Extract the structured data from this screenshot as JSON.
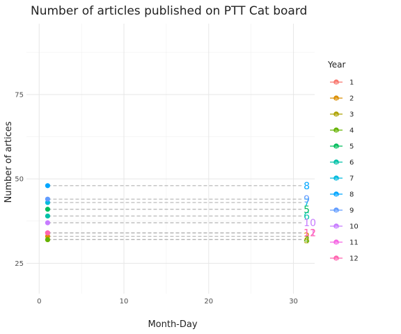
{
  "chart_data": {
    "type": "scatter",
    "title": "Number of articles published on PTT Cat board",
    "xlabel": "Month-Day",
    "ylabel": "Number of artices",
    "xlim": [
      -1.5,
      32.5
    ],
    "ylim": [
      16,
      96
    ],
    "x_ticks": [
      0,
      10,
      20,
      30
    ],
    "y_ticks": [
      25,
      50,
      75
    ],
    "grid": true,
    "legend": {
      "title": "Year",
      "position": "right"
    },
    "x_start": 1,
    "x_end": 31.2,
    "series": [
      {
        "name": "1",
        "color": "#F8766D",
        "value": 34
      },
      {
        "name": "2",
        "color": "#DB8E00",
        "value": 33
      },
      {
        "name": "3",
        "color": "#AEA200",
        "value": 32
      },
      {
        "name": "4",
        "color": "#64B200",
        "value": 32
      },
      {
        "name": "5",
        "color": "#00BD5C",
        "value": 41
      },
      {
        "name": "6",
        "color": "#00C1A7",
        "value": 39
      },
      {
        "name": "7",
        "color": "#00BADE",
        "value": 43
      },
      {
        "name": "8",
        "color": "#00A6FF",
        "value": 48
      },
      {
        "name": "9",
        "color": "#619CFF",
        "value": 44
      },
      {
        "name": "10",
        "color": "#C77CFF",
        "value": 37
      },
      {
        "name": "11",
        "color": "#F564E3",
        "value": 34
      },
      {
        "name": "12",
        "color": "#FF64B0",
        "value": 34
      }
    ]
  }
}
